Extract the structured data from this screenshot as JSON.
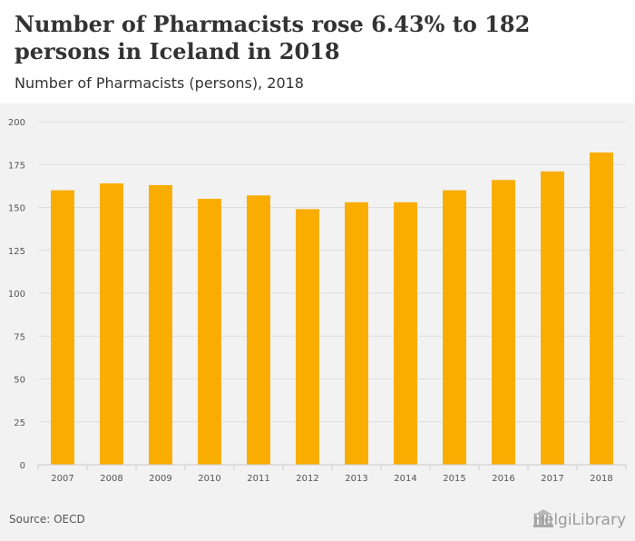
{
  "title": "Number of Pharmacists rose 6.43% to 182 persons in Iceland in 2018",
  "subtitle": "Number of Pharmacists (persons), 2018",
  "source": "Source: OECD",
  "logo_text": "HelgiLibrary",
  "colors": {
    "bar": "#f9ad00",
    "grid": "#dddddd",
    "axis_text": "#555555"
  },
  "chart_data": {
    "type": "bar",
    "categories": [
      "2007",
      "2008",
      "2009",
      "2010",
      "2011",
      "2012",
      "2013",
      "2014",
      "2015",
      "2016",
      "2017",
      "2018"
    ],
    "values": [
      160,
      164,
      163,
      155,
      157,
      149,
      153,
      153,
      160,
      166,
      171,
      182
    ],
    "yticks": [
      0,
      25,
      50,
      75,
      100,
      125,
      150,
      175,
      200
    ],
    "ylim": [
      0,
      200
    ],
    "grid": true,
    "legend": "none"
  }
}
